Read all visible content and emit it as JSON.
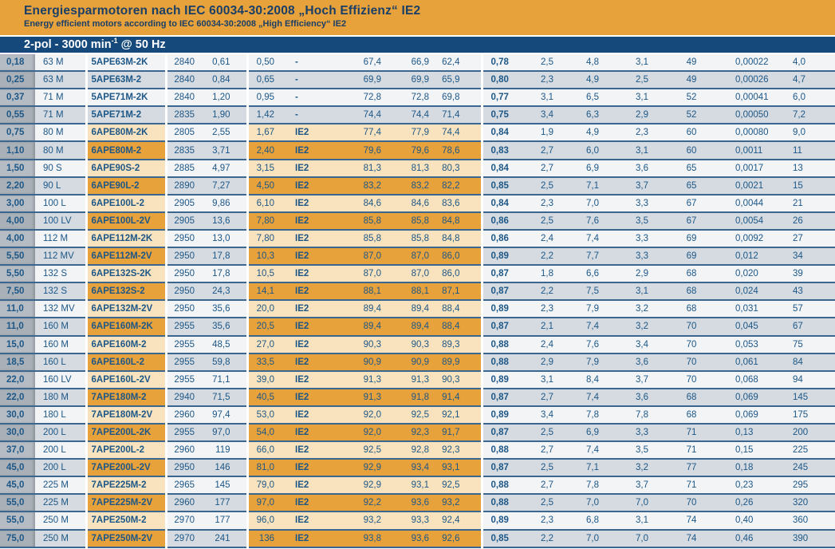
{
  "header": {
    "title": "Energiesparmotoren nach IEC 60034-30:2008 „Hoch Effizienz“ IE2",
    "subtitle": "Energy efficient motors according to IEC 60034-30:2008 „High Efficiency“ IE2"
  },
  "section_bar": {
    "text_prefix": "2-pol - 3000 min",
    "superscript": "-1",
    "text_suffix": " @ 50 Hz"
  },
  "colors": {
    "orange": "#E8A23C",
    "navy": "#16497B",
    "title-navy": "#1A3F66",
    "text-navy": "#1D5787",
    "row-light": "#F2F4F6",
    "row-dark": "#D5DBE0",
    "kw-light": "#B6BCC3",
    "kw-dark": "#A9B0B7",
    "hl-light": "#F8E3BE",
    "hl-dark": "#E8A23C",
    "separator": "#3A6690"
  },
  "table": {
    "ie2_marker": "IE2",
    "highlight_columns": [
      2,
      5,
      6,
      7,
      8,
      9
    ],
    "rows": [
      [
        "0,18",
        "63 M",
        "5APE63M-2K",
        "2840",
        "0,61",
        "0,50",
        "-",
        "67,4",
        "66,9",
        "62,4",
        "0,78",
        "2,5",
        "4,8",
        "3,1",
        "49",
        "0,00022",
        "4,0"
      ],
      [
        "0,25",
        "63 M",
        "5APE63M-2",
        "2840",
        "0,84",
        "0,65",
        "-",
        "69,9",
        "69,9",
        "65,9",
        "0,80",
        "2,3",
        "4,9",
        "2,5",
        "49",
        "0,00026",
        "4,7"
      ],
      [
        "0,37",
        "71 M",
        "5APE71M-2K",
        "2840",
        "1,20",
        "0,95",
        "-",
        "72,8",
        "72,8",
        "69,8",
        "0,77",
        "3,1",
        "6,5",
        "3,1",
        "52",
        "0,00041",
        "6,0"
      ],
      [
        "0,55",
        "71 M",
        "5APE71M-2",
        "2835",
        "1,90",
        "1,42",
        "-",
        "74,4",
        "74,4",
        "71,4",
        "0,75",
        "3,4",
        "6,3",
        "2,9",
        "52",
        "0,00050",
        "7,2"
      ],
      [
        "0,75",
        "80 M",
        "6APE80M-2K",
        "2805",
        "2,55",
        "1,67",
        "IE2",
        "77,4",
        "77,9",
        "74,4",
        "0,84",
        "1,9",
        "4,9",
        "2,3",
        "60",
        "0,00080",
        "9,0"
      ],
      [
        "1,10",
        "80 M",
        "6APE80M-2",
        "2835",
        "3,71",
        "2,40",
        "IE2",
        "79,6",
        "79,6",
        "78,6",
        "0,83",
        "2,7",
        "6,0",
        "3,1",
        "60",
        "0,0011",
        "11"
      ],
      [
        "1,50",
        "90 S",
        "6APE90S-2",
        "2885",
        "4,97",
        "3,15",
        "IE2",
        "81,3",
        "81,3",
        "80,3",
        "0,84",
        "2,7",
        "6,9",
        "3,6",
        "65",
        "0,0017",
        "13"
      ],
      [
        "2,20",
        "90 L",
        "6APE90L-2",
        "2890",
        "7,27",
        "4,50",
        "IE2",
        "83,2",
        "83,2",
        "82,2",
        "0,85",
        "2,5",
        "7,1",
        "3,7",
        "65",
        "0,0021",
        "15"
      ],
      [
        "3,00",
        "100 L",
        "6APE100L-2",
        "2905",
        "9,86",
        "6,10",
        "IE2",
        "84,6",
        "84,6",
        "83,6",
        "0,84",
        "2,3",
        "7,0",
        "3,3",
        "67",
        "0,0044",
        "21"
      ],
      [
        "4,00",
        "100 LV",
        "6APE100L-2V",
        "2905",
        "13,6",
        "7,80",
        "IE2",
        "85,8",
        "85,8",
        "84,8",
        "0,86",
        "2,5",
        "7,6",
        "3,5",
        "67",
        "0,0054",
        "26"
      ],
      [
        "4,00",
        "112 M",
        "6APE112M-2K",
        "2950",
        "13,0",
        "7,80",
        "IE2",
        "85,8",
        "85,8",
        "84,8",
        "0,86",
        "2,4",
        "7,4",
        "3,3",
        "69",
        "0,0092",
        "27"
      ],
      [
        "5,50",
        "112 MV",
        "6APE112M-2V",
        "2950",
        "17,8",
        "10,3",
        "IE2",
        "87,0",
        "87,0",
        "86,0",
        "0,89",
        "2,2",
        "7,7",
        "3,3",
        "69",
        "0,012",
        "34"
      ],
      [
        "5,50",
        "132 S",
        "6APE132S-2K",
        "2950",
        "17,8",
        "10,5",
        "IE2",
        "87,0",
        "87,0",
        "86,0",
        "0,87",
        "1,8",
        "6,6",
        "2,9",
        "68",
        "0,020",
        "39"
      ],
      [
        "7,50",
        "132 S",
        "6APE132S-2",
        "2950",
        "24,3",
        "14,1",
        "IE2",
        "88,1",
        "88,1",
        "87,1",
        "0,87",
        "2,2",
        "7,5",
        "3,1",
        "68",
        "0,024",
        "43"
      ],
      [
        "11,0",
        "132 MV",
        "6APE132M-2V",
        "2950",
        "35,6",
        "20,0",
        "IE2",
        "89,4",
        "89,4",
        "88,4",
        "0,89",
        "2,3",
        "7,9",
        "3,2",
        "68",
        "0,031",
        "57"
      ],
      [
        "11,0",
        "160 M",
        "6APE160M-2K",
        "2955",
        "35,6",
        "20,5",
        "IE2",
        "89,4",
        "89,4",
        "88,4",
        "0,87",
        "2,1",
        "7,4",
        "3,2",
        "70",
        "0,045",
        "67"
      ],
      [
        "15,0",
        "160 M",
        "6APE160M-2",
        "2955",
        "48,5",
        "27,0",
        "IE2",
        "90,3",
        "90,3",
        "89,3",
        "0,88",
        "2,4",
        "7,6",
        "3,4",
        "70",
        "0,053",
        "75"
      ],
      [
        "18,5",
        "160 L",
        "6APE160L-2",
        "2955",
        "59,8",
        "33,5",
        "IE2",
        "90,9",
        "90,9",
        "89,9",
        "0,88",
        "2,9",
        "7,9",
        "3,6",
        "70",
        "0,061",
        "84"
      ],
      [
        "22,0",
        "160 LV",
        "6APE160L-2V",
        "2955",
        "71,1",
        "39,0",
        "IE2",
        "91,3",
        "91,3",
        "90,3",
        "0,89",
        "3,1",
        "8,4",
        "3,7",
        "70",
        "0,068",
        "94"
      ],
      [
        "22,0",
        "180 M",
        "7APE180M-2",
        "2940",
        "71,5",
        "40,5",
        "IE2",
        "91,3",
        "91,8",
        "91,4",
        "0,87",
        "2,7",
        "7,4",
        "3,6",
        "68",
        "0,069",
        "145"
      ],
      [
        "30,0",
        "180 L",
        "7APE180M-2V",
        "2960",
        "97,4",
        "53,0",
        "IE2",
        "92,0",
        "92,5",
        "92,1",
        "0,89",
        "3,4",
        "7,8",
        "7,8",
        "68",
        "0,069",
        "175"
      ],
      [
        "30,0",
        "200 L",
        "7APE200L-2K",
        "2955",
        "97,0",
        "54,0",
        "IE2",
        "92,0",
        "92,3",
        "91,7",
        "0,87",
        "2,5",
        "6,9",
        "3,3",
        "71",
        "0,13",
        "200"
      ],
      [
        "37,0",
        "200 L",
        "7APE200L-2",
        "2960",
        "119",
        "66,0",
        "IE2",
        "92,5",
        "92,8",
        "92,3",
        "0,88",
        "2,7",
        "7,4",
        "3,5",
        "71",
        "0,15",
        "225"
      ],
      [
        "45,0",
        "200 L",
        "7APE200L-2V",
        "2950",
        "146",
        "81,0",
        "IE2",
        "92,9",
        "93,4",
        "93,1",
        "0,87",
        "2,5",
        "7,1",
        "3,2",
        "77",
        "0,18",
        "245"
      ],
      [
        "45,0",
        "225 M",
        "7APE225M-2",
        "2965",
        "145",
        "79,0",
        "IE2",
        "92,9",
        "93,1",
        "92,5",
        "0,88",
        "2,7",
        "7,8",
        "3,7",
        "71",
        "0,23",
        "295"
      ],
      [
        "55,0",
        "225 M",
        "7APE225M-2V",
        "2960",
        "177",
        "97,0",
        "IE2",
        "92,2",
        "93,6",
        "93,2",
        "0,88",
        "2,5",
        "7,0",
        "7,0",
        "70",
        "0,26",
        "320"
      ],
      [
        "55,0",
        "250 M",
        "7APE250M-2",
        "2970",
        "177",
        "96,0",
        "IE2",
        "93,2",
        "93,3",
        "92,4",
        "0,89",
        "2,3",
        "6,8",
        "3,1",
        "74",
        "0,40",
        "360"
      ],
      [
        "75,0",
        "250 M",
        "7APE250M-2V",
        "2970",
        "241",
        "136",
        "IE2",
        "93,8",
        "93,6",
        "92,6",
        "0,85",
        "2,2",
        "7,0",
        "7,0",
        "74",
        "0,46",
        "390"
      ]
    ]
  }
}
